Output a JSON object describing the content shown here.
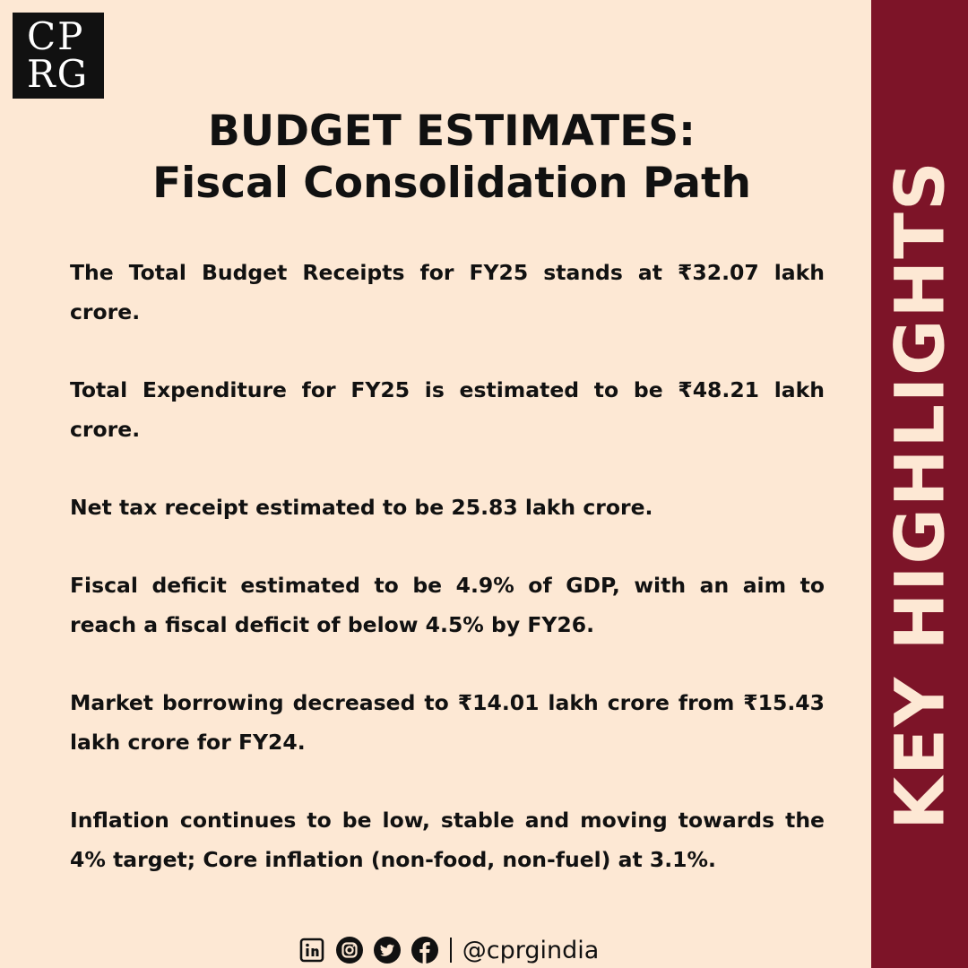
{
  "logo": {
    "line1": "CP",
    "line2": "RG"
  },
  "title": {
    "line1": "BUDGET ESTIMATES:",
    "line2": "Fiscal Consolidation Path"
  },
  "highlights": [
    "The Total Budget Receipts for FY25 stands at ₹32.07 lakh crore.",
    "Total Expenditure for FY25 is estimated to be ₹48.21 lakh crore.",
    "Net tax receipt estimated to be 25.83 lakh crore.",
    "Fiscal deficit estimated to be 4.9% of GDP, with an aim to reach a fiscal deficit of below 4.5% by FY26.",
    "Market borrowing decreased to ₹14.01 lakh crore from ₹15.43 lakh crore for FY24.",
    "Inflation continues to be low, stable and moving towards the 4% target; Core inflation (non-food, non-fuel) at 3.1%."
  ],
  "sidebar": {
    "label": "KEY HIGHLIGHTS"
  },
  "footer": {
    "icons": [
      "linkedin-icon",
      "instagram-icon",
      "twitter-icon",
      "facebook-icon"
    ],
    "handle": "@cprgindia"
  },
  "colors": {
    "background": "#fde8d4",
    "sidebar": "#7d1428",
    "text": "#111111"
  }
}
